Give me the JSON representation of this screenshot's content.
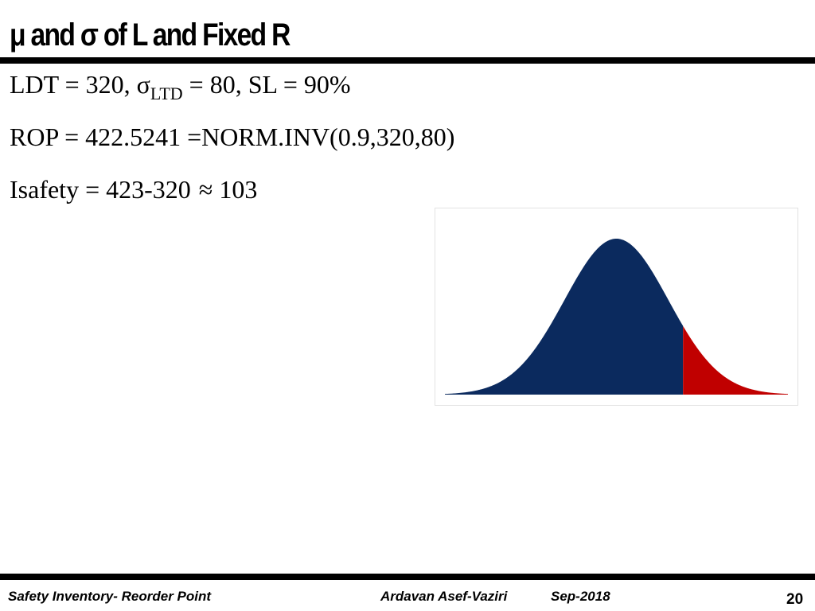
{
  "slide": {
    "title": "μ and σ of L and Fixed R",
    "lines": {
      "l1_a": "LDT = 320, ",
      "l1_sigma": "σ",
      "l1_sub": "LTD",
      "l1_b": " = 80, SL = 90%",
      "l2": "ROP = 422.5241 =NORM.INV(0.9,320,80)",
      "l3_a": "Isafety = 423-320",
      "l3_approx": "≈",
      "l3_b": " 103"
    }
  },
  "figure": {
    "mean": 320,
    "sd": 80,
    "cutoff": 422.5241,
    "service_level": 0.9,
    "colors": {
      "body": "#0b2a5e",
      "tail": "#c00000"
    }
  },
  "footer": {
    "left": "Safety Inventory- Reorder Point",
    "author": "Ardavan Asef-Vaziri",
    "date": "Sep-2018",
    "page": "20"
  }
}
